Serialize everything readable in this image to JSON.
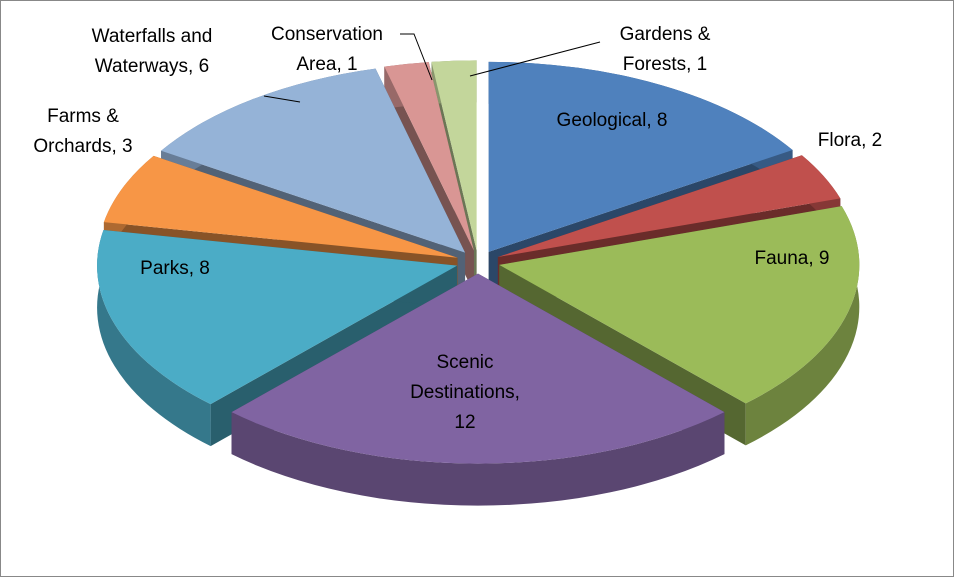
{
  "chart_data": {
    "type": "pie3d",
    "values": [
      8,
      2,
      9,
      12,
      8,
      3,
      6,
      1,
      1
    ],
    "value_labels": [
      [
        "Geological, 8"
      ],
      [
        "Flora, 2"
      ],
      [
        "Fauna, 9"
      ],
      [
        "Scenic",
        "Destinations,",
        "12"
      ],
      [
        "Parks, 8"
      ],
      [
        "Farms &",
        "Orchards, 3"
      ],
      [
        "Waterfalls and",
        "Waterways, 6"
      ],
      [
        "Conservation",
        "Area, 1"
      ],
      [
        "Gardens &",
        "Forests, 1"
      ]
    ],
    "colors": [
      "#4f81bd",
      "#c0504d",
      "#9bbb59",
      "#8064a2",
      "#4bacc6",
      "#f79646",
      "#95b3d7",
      "#d99694",
      "#c3d69b"
    ]
  }
}
